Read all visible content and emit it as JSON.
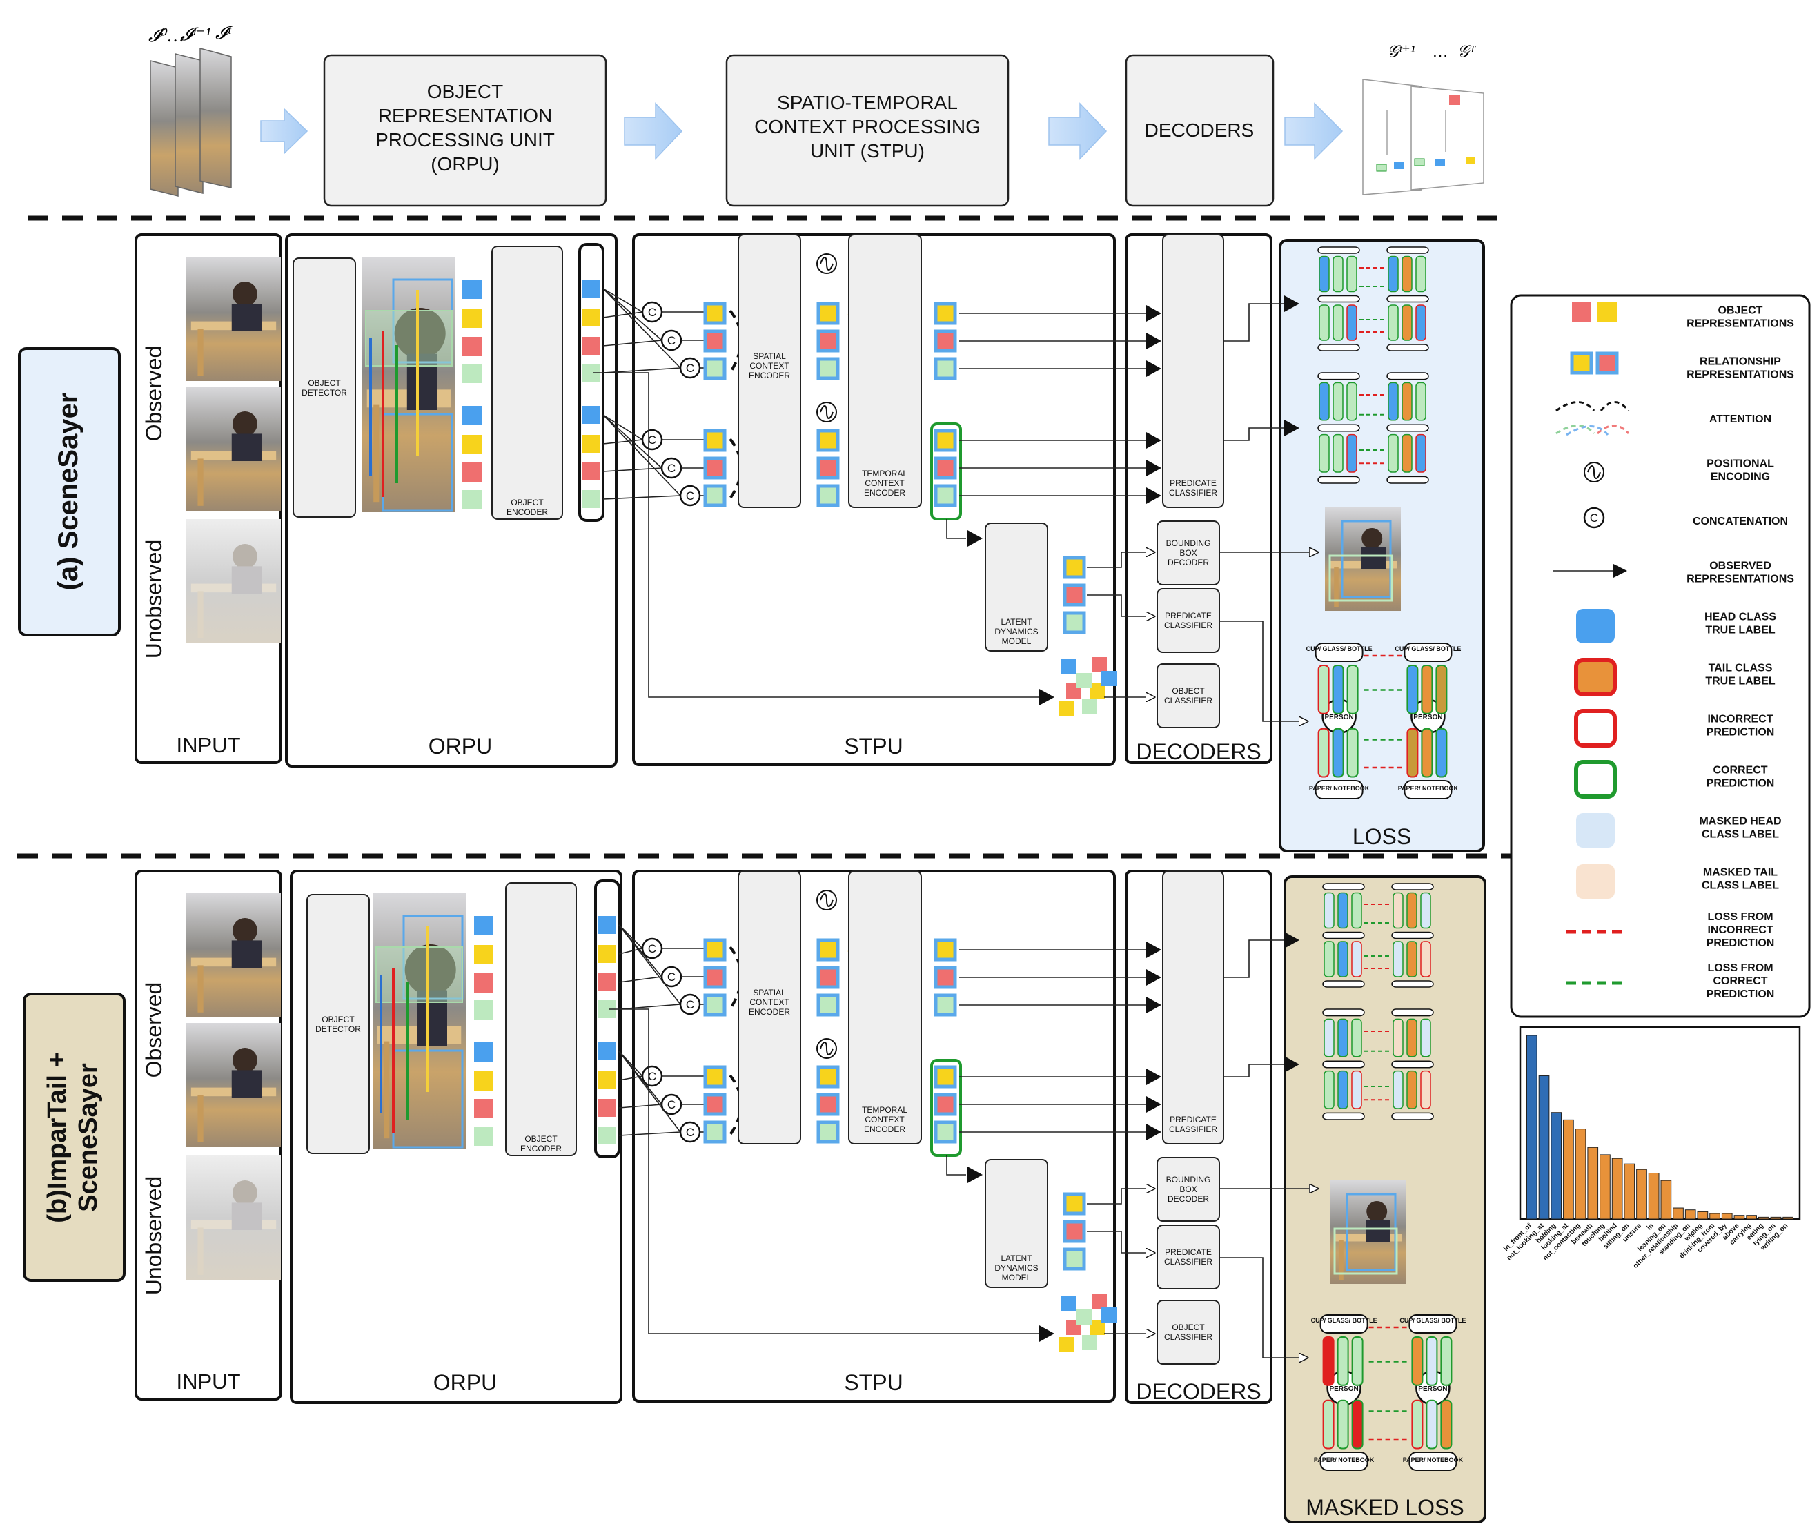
{
  "colors": {
    "yellow": "#f7d31c",
    "red": "#ef6f6f",
    "blue": "#4aa0ee",
    "green": "#bde9bf",
    "border_blue": "#5aa8ea",
    "green_border": "#1f9a2e",
    "light_blue": "#e6f0fb",
    "tan": "#e5dcc0",
    "dash_blue": "#7ab4f0",
    "dash_yellow": "#f5cf3a",
    "dash_red": "#f07a7a",
    "dash_green": "#8fd19a"
  },
  "top": {
    "frame_labels": [
      "𝓘⁰…",
      "𝓘ᵗ⁻¹",
      "𝓘ᵗ"
    ],
    "graph_labels": [
      "𝒢ᵗ⁺¹",
      "…",
      "𝒢ᵀ"
    ],
    "orpu": [
      "OBJECT",
      "REPRESENTATION",
      "PROCESSING UNIT",
      "(ORPU)"
    ],
    "stpu": [
      "SPATIO-TEMPORAL",
      "CONTEXT PROCESSING",
      "UNIT (STPU)"
    ],
    "decoders": "DECODERS"
  },
  "panel_a": {
    "title": "(a) SceneSayer",
    "observed": "Observed",
    "unobserved": "Unobserved",
    "input": "INPUT",
    "orpu": "ORPU",
    "stpu": "STPU",
    "decoders": "DECODERS",
    "loss": "LOSS"
  },
  "panel_b": {
    "title_1": "(b)ImparTail +",
    "title_2": "SceneSayer",
    "observed": "Observed",
    "unobserved": "Unobserved",
    "input": "INPUT",
    "orpu": "ORPU",
    "stpu": "STPU",
    "decoders": "DECODERS",
    "loss": "MASKED LOSS"
  },
  "modules": {
    "object_detector": [
      "OBJECT",
      "DETECTOR"
    ],
    "object_encoder": [
      "OBJECT",
      "ENCODER"
    ],
    "spatial_encoder": [
      "SPATIAL",
      "CONTEXT",
      "ENCODER"
    ],
    "temporal_encoder": [
      "TEMPORAL",
      "CONTEXT",
      "ENCODER"
    ],
    "latent_dynamics": [
      "LATENT",
      "DYNAMICS",
      "MODEL"
    ],
    "predicate_classifier": [
      "PREDICATE",
      "CLASSIFIER"
    ],
    "bbox_decoder": [
      "BOUNDING",
      "BOX",
      "DECODER"
    ],
    "object_classifier": [
      "OBJECT",
      "CLASSIFIER"
    ],
    "concat_symbol": "C"
  },
  "graph_nodes": {
    "top_node": "CUP/ GLASS/ BOTTLE",
    "center_node": "PERSON",
    "bottom_node": "PAPER/ NOTEBOOK"
  },
  "legend": [
    {
      "icon": "obj",
      "text": [
        "OBJECT",
        "REPRESENTATIONS"
      ]
    },
    {
      "icon": "rel",
      "text": [
        "RELATIONSHIP",
        "REPRESENTATIONS"
      ]
    },
    {
      "icon": "attn",
      "text": [
        "ATTENTION"
      ]
    },
    {
      "icon": "pos",
      "text": [
        "POSITIONAL",
        "ENCODING"
      ]
    },
    {
      "icon": "concat",
      "text": [
        "CONCATENATION"
      ]
    },
    {
      "icon": "arrow",
      "text": [
        "OBSERVED",
        "REPRESENTATIONS"
      ]
    },
    {
      "icon": "head",
      "text": [
        "HEAD CLASS",
        "TRUE LABEL"
      ]
    },
    {
      "icon": "tail",
      "text": [
        "TAIL CLASS",
        "TRUE LABEL"
      ]
    },
    {
      "icon": "incorrect",
      "text": [
        "INCORRECT",
        "PREDICTION"
      ]
    },
    {
      "icon": "correct",
      "text": [
        "CORRECT",
        "PREDICTION"
      ]
    },
    {
      "icon": "mhead",
      "text": [
        "MASKED HEAD",
        "CLASS LABEL"
      ]
    },
    {
      "icon": "mtail",
      "text": [
        "MASKED TAIL",
        "CLASS LABEL"
      ]
    },
    {
      "icon": "lossinc",
      "text": [
        "LOSS FROM",
        "INCORRECT",
        "PREDICTION"
      ]
    },
    {
      "icon": "losscor",
      "text": [
        "LOSS FROM",
        "CORRECT",
        "PREDICTION"
      ]
    }
  ],
  "chart_data": {
    "type": "bar",
    "categories": [
      "in_front_of",
      "not_looking_at",
      "holding",
      "looking_at",
      "not_contacting",
      "beneath",
      "touching",
      "behind",
      "sitting_on",
      "unsure",
      "in",
      "leaning_on",
      "other_relationship",
      "standing_on",
      "wiping",
      "drinking_from",
      "covered_by",
      "above",
      "carrying",
      "eating",
      "lying_on",
      "writing_on"
    ],
    "values": [
      100,
      78,
      58,
      54,
      49,
      39,
      35,
      33,
      30,
      27,
      25,
      21,
      6,
      5,
      4,
      3,
      3,
      2,
      2,
      1,
      1,
      1
    ],
    "colors": [
      "#2f6db5",
      "#2f6db5",
      "#2f6db5",
      "#e8923a",
      "#e8923a",
      "#e8923a",
      "#e8923a",
      "#e8923a",
      "#e8923a",
      "#e8923a",
      "#e8923a",
      "#e8923a",
      "#e8923a",
      "#e8923a",
      "#e8923a",
      "#e8923a",
      "#e8923a",
      "#e8923a",
      "#e8923a",
      "#e8923a",
      "#e8923a",
      "#e8923a"
    ],
    "title": "",
    "xlabel": "",
    "ylabel": "",
    "ylim": [
      0,
      100
    ]
  }
}
